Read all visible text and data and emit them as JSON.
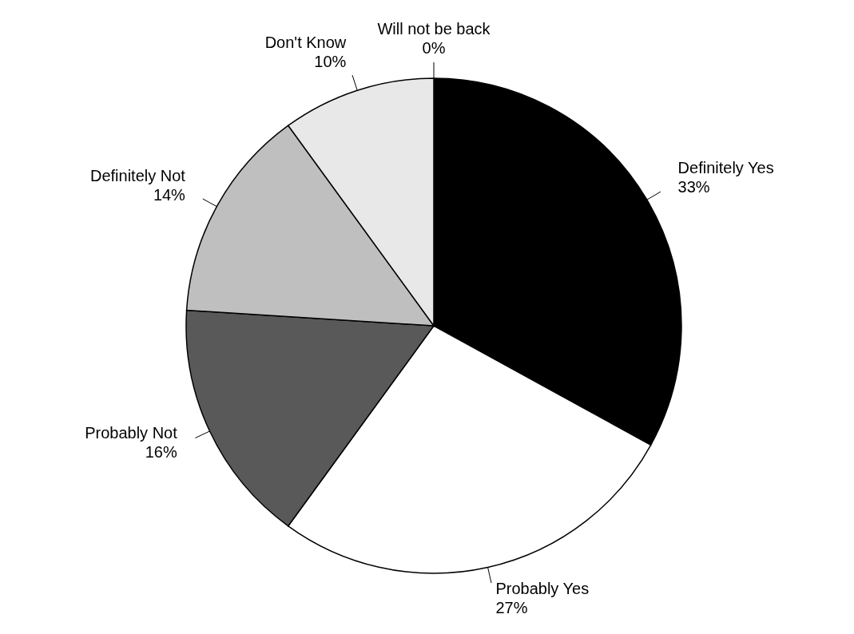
{
  "chart_data": {
    "type": "pie",
    "categories": [
      "Definitely Yes",
      "Probably Yes",
      "Probably Not",
      "Definitely Not",
      "Don't Know",
      "Will not be back"
    ],
    "values": [
      33,
      27,
      16,
      14,
      10,
      0
    ],
    "value_labels": [
      "33%",
      "27%",
      "16%",
      "14%",
      "10%",
      "0%"
    ],
    "colors": [
      "#000000",
      "#ffffff",
      "#595959",
      "#bfbfbf",
      "#e8e8e8",
      "#ffffff"
    ],
    "legend": false
  }
}
